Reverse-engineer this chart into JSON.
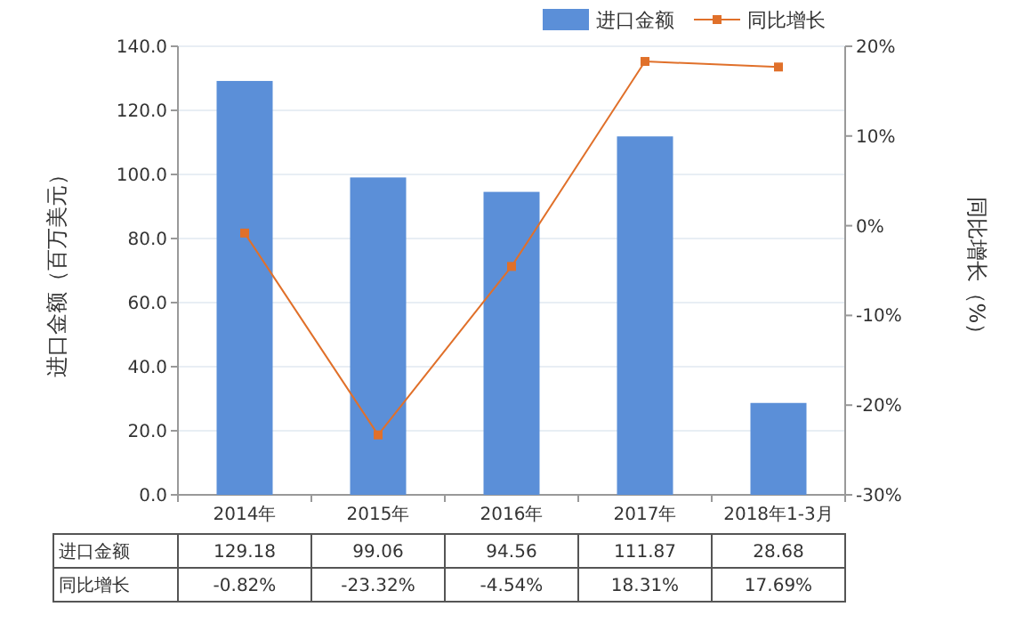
{
  "chart_data": {
    "type": "bar",
    "categories": [
      "2014年",
      "2015年",
      "2016年",
      "2017年",
      "2018年1-3月"
    ],
    "ylabel": "进口金额（百万美元）",
    "y2label": "同比增长（%）",
    "ylim": [
      0,
      140
    ],
    "yticks": [
      {
        "value": 0,
        "label": "0.0"
      },
      {
        "value": 20,
        "label": "20.0"
      },
      {
        "value": 40,
        "label": "40.0"
      },
      {
        "value": 60,
        "label": "60.0"
      },
      {
        "value": 80,
        "label": "80.0"
      },
      {
        "value": 100,
        "label": "100.0"
      },
      {
        "value": 120,
        "label": "120.0"
      },
      {
        "value": 140,
        "label": "140.0"
      }
    ],
    "y2lim": [
      -30,
      20
    ],
    "y2ticks": [
      {
        "value": -30,
        "label": "-30%"
      },
      {
        "value": -20,
        "label": "-20%"
      },
      {
        "value": -10,
        "label": "-10%"
      },
      {
        "value": 0,
        "label": "0%"
      },
      {
        "value": 10,
        "label": "10%"
      },
      {
        "value": 20,
        "label": "20%"
      }
    ],
    "grid": "y",
    "legend": "top right",
    "marker": "square",
    "series": [
      {
        "name": "进口金额",
        "color": "#5b8fd8",
        "values": [
          129.18,
          99.06,
          94.56,
          111.87,
          28.68
        ],
        "value_labels": [
          "129.18",
          "99.06",
          "94.56",
          "111.87",
          "28.68"
        ]
      },
      {
        "name": "同比增长",
        "type": "line",
        "axis": "y2",
        "color": "#e0702a",
        "values": [
          -0.82,
          -23.32,
          -4.54,
          18.31,
          17.69
        ],
        "value_labels": [
          "-0.82%",
          "-23.32%",
          "-4.54%",
          "18.31%",
          "17.69%"
        ]
      }
    ]
  }
}
